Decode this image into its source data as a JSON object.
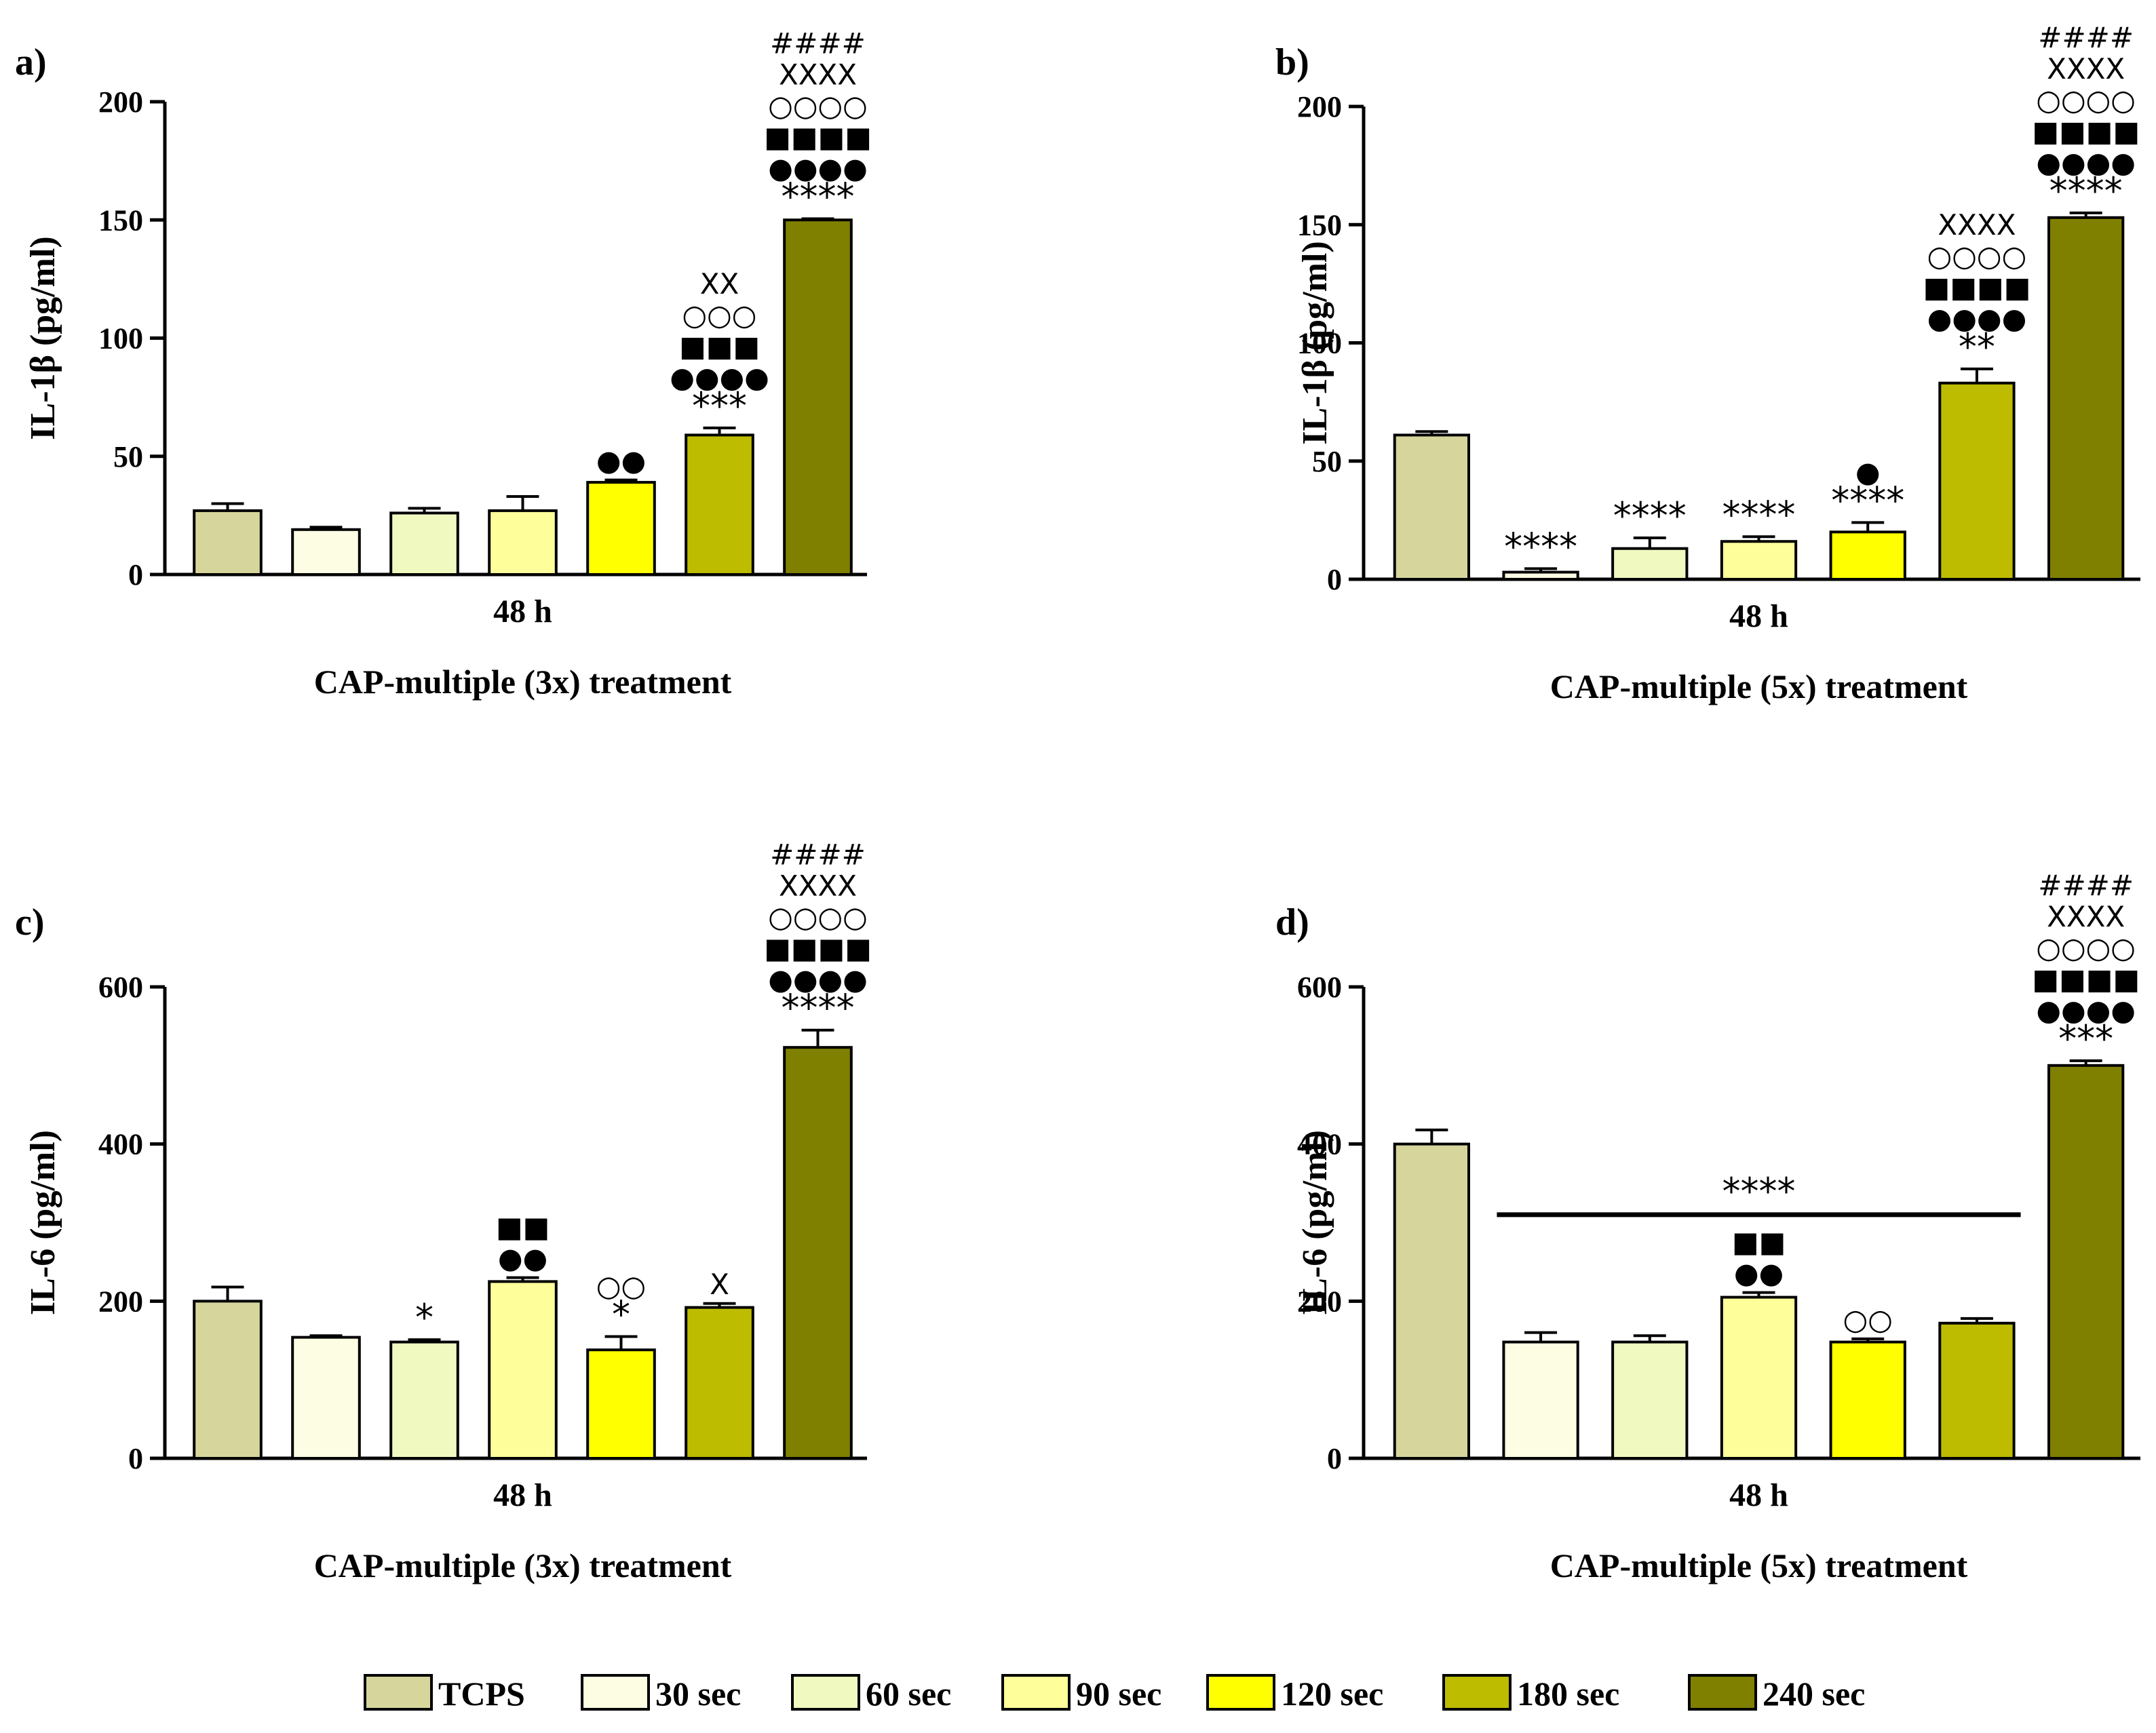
{
  "legend": {
    "items": [
      {
        "label": "TCPS",
        "color": "#d6d69c"
      },
      {
        "label": "30 sec",
        "color": "#fdfde4"
      },
      {
        "label": "60 sec",
        "color": "#f0fac0"
      },
      {
        "label": "90 sec",
        "color": "#fefe9a"
      },
      {
        "label": "120 sec",
        "color": "#ffff00"
      },
      {
        "label": "180 sec",
        "color": "#bdbc00"
      },
      {
        "label": "240 sec",
        "color": "#808000"
      }
    ]
  },
  "chart_data": [
    {
      "panel": "a)",
      "type": "bar",
      "ylabel": "IL-1β (pg/ml)",
      "xlabel": "48 h",
      "title": "CAP-multiple (3x) treatment",
      "ylim": [
        0,
        200
      ],
      "yticks": [
        "0",
        "50",
        "100",
        "150",
        "200"
      ],
      "categories": [
        "TCPS",
        "30 sec",
        "60 sec",
        "90 sec",
        "120 sec",
        "180 sec",
        "240 sec"
      ],
      "values": [
        27,
        19,
        26,
        27,
        39,
        59,
        150
      ],
      "errors": [
        3,
        1,
        2,
        6,
        1,
        3,
        0.5
      ],
      "annotations": [
        [],
        [],
        [],
        [],
        [
          "●●"
        ],
        [
          "***",
          "●●●●",
          "■■■",
          "○○○",
          "XX"
        ],
        [
          "****",
          "●●●●",
          "■■■■",
          "○○○○",
          "XXXX",
          "####"
        ]
      ]
    },
    {
      "panel": "b)",
      "type": "bar",
      "ylabel": "IL-1β (pg/ml)",
      "xlabel": "48 h",
      "title": "CAP-multiple (5x) treatment",
      "ylim": [
        0,
        200
      ],
      "yticks": [
        "0",
        "50",
        "100",
        "150",
        "200"
      ],
      "categories": [
        "TCPS",
        "30 sec",
        "60 sec",
        "90 sec",
        "120 sec",
        "180 sec",
        "240 sec"
      ],
      "values": [
        61,
        3,
        13,
        16,
        20,
        83,
        153
      ],
      "errors": [
        1.5,
        1.5,
        4.5,
        2,
        4,
        6,
        2
      ],
      "annotations": [
        [],
        [
          "****"
        ],
        [
          "****"
        ],
        [
          "****"
        ],
        [
          "****",
          "●"
        ],
        [
          "**",
          "●●●●",
          "■■■■",
          "○○○○",
          "XXXX"
        ],
        [
          "****",
          "●●●●",
          "■■■■",
          "○○○○",
          "XXXX",
          "####"
        ]
      ]
    },
    {
      "panel": "c)",
      "type": "bar",
      "ylabel": "IL-6 (pg/ml)",
      "xlabel": "48 h",
      "title": "CAP-multiple (3x) treatment",
      "ylim": [
        0,
        600
      ],
      "yticks": [
        "0",
        "200",
        "400",
        "600"
      ],
      "categories": [
        "TCPS",
        "30 sec",
        "60 sec",
        "90 sec",
        "120 sec",
        "180 sec",
        "240 sec"
      ],
      "values": [
        200,
        154,
        148,
        225,
        138,
        192,
        523
      ],
      "errors": [
        18,
        2,
        3,
        5,
        17,
        5,
        22
      ],
      "annotations": [
        [],
        [],
        [
          "*"
        ],
        [
          "●●",
          "■■"
        ],
        [
          "*",
          "○○"
        ],
        [
          "X"
        ],
        [
          "****",
          "●●●●",
          "■■■■",
          "○○○○",
          "XXXX",
          "####"
        ]
      ]
    },
    {
      "panel": "d)",
      "type": "bar",
      "ylabel": "IL-6 (pg/ml)",
      "xlabel": "48 h",
      "title": "CAP-multiple (5x) treatment",
      "ylim": [
        0,
        600
      ],
      "yticks": [
        "0",
        "200",
        "400",
        "600"
      ],
      "categories": [
        "TCPS",
        "30 sec",
        "60 sec",
        "90 sec",
        "120 sec",
        "180 sec",
        "240 sec"
      ],
      "values": [
        400,
        148,
        148,
        205,
        148,
        172,
        500
      ],
      "errors": [
        18,
        12,
        8,
        6,
        4,
        6,
        6
      ],
      "annotations": [
        [],
        [],
        [],
        [
          "●●",
          "■■"
        ],
        [
          "○○"
        ],
        [],
        [
          "***",
          "●●●●",
          "■■■■",
          "○○○○",
          "XXXX",
          "####"
        ]
      ],
      "bracket": {
        "from_category": "30 sec",
        "to_category": "180 sec",
        "value": 310,
        "label": "****"
      }
    }
  ]
}
